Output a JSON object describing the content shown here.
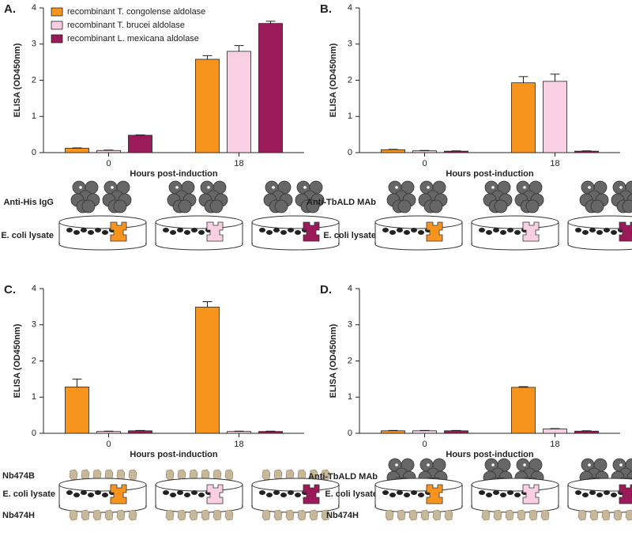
{
  "chart_data": [
    {
      "type": "bar",
      "label": "A.",
      "ylabel": "ELISA (OD450nm)",
      "xlabel": "Hours post-induction",
      "categories": [
        "0",
        "18"
      ],
      "ylim": [
        0,
        4
      ],
      "yticks": [
        0,
        1,
        2,
        3,
        4
      ],
      "series": [
        {
          "name": "recombinant T. congolense aldolase",
          "color": "#f7941d",
          "values": [
            0.12,
            2.58
          ],
          "errors": [
            0.01,
            0.1
          ]
        },
        {
          "name": "recombinant T. brucei aldolase",
          "color": "#f9d0e3",
          "values": [
            0.06,
            2.8
          ],
          "errors": [
            0.01,
            0.16
          ]
        },
        {
          "name": "recombinant L. mexicana aldolase",
          "color": "#9b1b5a",
          "values": [
            0.48,
            3.57
          ],
          "errors": [
            0.01,
            0.06
          ]
        }
      ],
      "annotations": [
        {
          "text": "Anti-His IgG",
          "color": "#666666"
        },
        {
          "text": "E. coli lysate",
          "color": "#222222"
        }
      ]
    },
    {
      "type": "bar",
      "label": "B.",
      "ylabel": "ELISA (OD450nm)",
      "xlabel": "Hours post-induction",
      "categories": [
        "0",
        "18"
      ],
      "ylim": [
        0,
        4
      ],
      "yticks": [
        0,
        1,
        2,
        3,
        4
      ],
      "series": [
        {
          "color": "#f7941d",
          "values": [
            0.08,
            1.93
          ],
          "errors": [
            0.01,
            0.17
          ]
        },
        {
          "color": "#f9d0e3",
          "values": [
            0.05,
            1.97
          ],
          "errors": [
            0.01,
            0.2
          ]
        },
        {
          "color": "#9b1b5a",
          "values": [
            0.04,
            0.04
          ],
          "errors": [
            0.01,
            0.01
          ]
        }
      ],
      "annotations": [
        {
          "text": "Anti-TbALD MAb",
          "color": "#666666"
        },
        {
          "text": "E. coli lysate",
          "color": "#222222"
        }
      ]
    },
    {
      "type": "bar",
      "label": "C.",
      "ylabel": "ELISA (OD450nm)",
      "xlabel": "Hours post-induction",
      "categories": [
        "0",
        "18"
      ],
      "ylim": [
        0,
        4
      ],
      "yticks": [
        0,
        1,
        2,
        3,
        4
      ],
      "series": [
        {
          "color": "#f7941d",
          "values": [
            1.28,
            3.49
          ],
          "errors": [
            0.22,
            0.15
          ]
        },
        {
          "color": "#f9d0e3",
          "values": [
            0.05,
            0.05
          ],
          "errors": [
            0.01,
            0.01
          ]
        },
        {
          "color": "#9b1b5a",
          "values": [
            0.07,
            0.05
          ],
          "errors": [
            0.01,
            0.01
          ]
        }
      ],
      "annotations": [
        {
          "text": "Nb474B",
          "color": "#c8b89a"
        },
        {
          "text": "E. coli lysate",
          "color": "#222222"
        },
        {
          "text": "Nb474H",
          "color": "#c8b89a"
        }
      ]
    },
    {
      "type": "bar",
      "label": "D.",
      "ylabel": "ELISA (OD450nm)",
      "xlabel": "Hours post-induction",
      "categories": [
        "0",
        "18"
      ],
      "ylim": [
        0,
        4
      ],
      "yticks": [
        0,
        1,
        2,
        3,
        4
      ],
      "series": [
        {
          "color": "#f7941d",
          "values": [
            0.07,
            1.27
          ],
          "errors": [
            0.01,
            0.02
          ]
        },
        {
          "color": "#f9d0e3",
          "values": [
            0.07,
            0.12
          ],
          "errors": [
            0.01,
            0.01
          ]
        },
        {
          "color": "#9b1b5a",
          "values": [
            0.07,
            0.06
          ],
          "errors": [
            0.01,
            0.01
          ]
        }
      ],
      "annotations": [
        {
          "text": "Anti-TbALD MAb",
          "color": "#666666"
        },
        {
          "text": "E. coli lysate",
          "color": "#222222"
        },
        {
          "text": "Nb474H",
          "color": "#c8b89a"
        }
      ]
    }
  ]
}
